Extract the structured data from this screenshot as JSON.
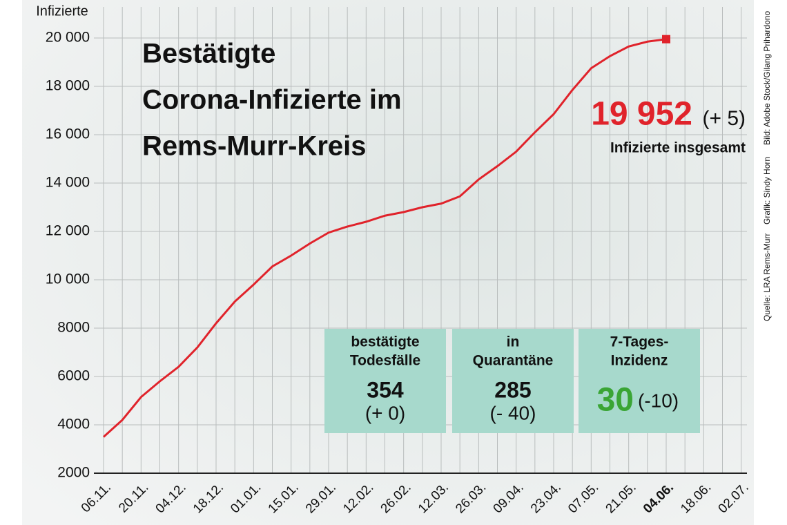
{
  "chart_data": {
    "type": "line",
    "title_lines": [
      "Bestätigte",
      "Corona-Infizierte im",
      "Rems-Murr-Kreis"
    ],
    "y_label": "Infizierte",
    "categories": [
      "06.11.",
      null,
      "20.11.",
      null,
      "04.12.",
      null,
      "18.12.",
      null,
      "01.01.",
      null,
      "15.01.",
      null,
      "29.01.",
      null,
      "12.02.",
      null,
      "26.02.",
      null,
      "12.03.",
      null,
      "26.03.",
      null,
      "09.04.",
      null,
      "23.04.",
      null,
      "07.05.",
      null,
      "21.05.",
      null,
      "04.06.",
      null,
      "18.06.",
      null,
      "02.07."
    ],
    "series": [
      {
        "name": "Infizierte",
        "color": "#e0232b",
        "values": [
          3500,
          4200,
          5150,
          5800,
          6400,
          7200,
          8200,
          9100,
          9800,
          10550,
          11000,
          11500,
          11950,
          12200,
          12400,
          12650,
          12800,
          13000,
          13150,
          13450,
          14150,
          14700,
          15300,
          16100,
          16850,
          17850,
          18750,
          19250,
          19650,
          19850,
          19952,
          null,
          null,
          null,
          null
        ]
      }
    ],
    "ylim": [
      2000,
      21000
    ],
    "yticks": [
      2000,
      4000,
      6000,
      8000,
      {
        "value": 10000,
        "label": "10 000"
      },
      {
        "value": 12000,
        "label": "12 000"
      },
      {
        "value": 14000,
        "label": "14 000"
      },
      {
        "value": 16000,
        "label": "16 000"
      },
      {
        "value": 18000,
        "label": "18 000"
      },
      {
        "value": 20000,
        "label": "20 000"
      }
    ],
    "grid": true,
    "total": {
      "value": "19 952",
      "change": "(+ 5)",
      "label": "Infizierte insgesamt"
    },
    "boxes": [
      {
        "title": [
          "bestätigte",
          "Todesfälle"
        ],
        "value": "354",
        "change": "(+ 0)"
      },
      {
        "title": [
          "in",
          "Quarantäne"
        ],
        "value": "285",
        "change": "(- 40)"
      },
      {
        "title": [
          "7-Tages-",
          "Inzidenz"
        ],
        "value": "30",
        "change": "(-10)"
      }
    ],
    "credits": [
      "Quelle: LRA Rems-Murr",
      "Grafik: Sindy Horn",
      "Bild: Adobe Stock/Gilang Prihardono"
    ]
  }
}
